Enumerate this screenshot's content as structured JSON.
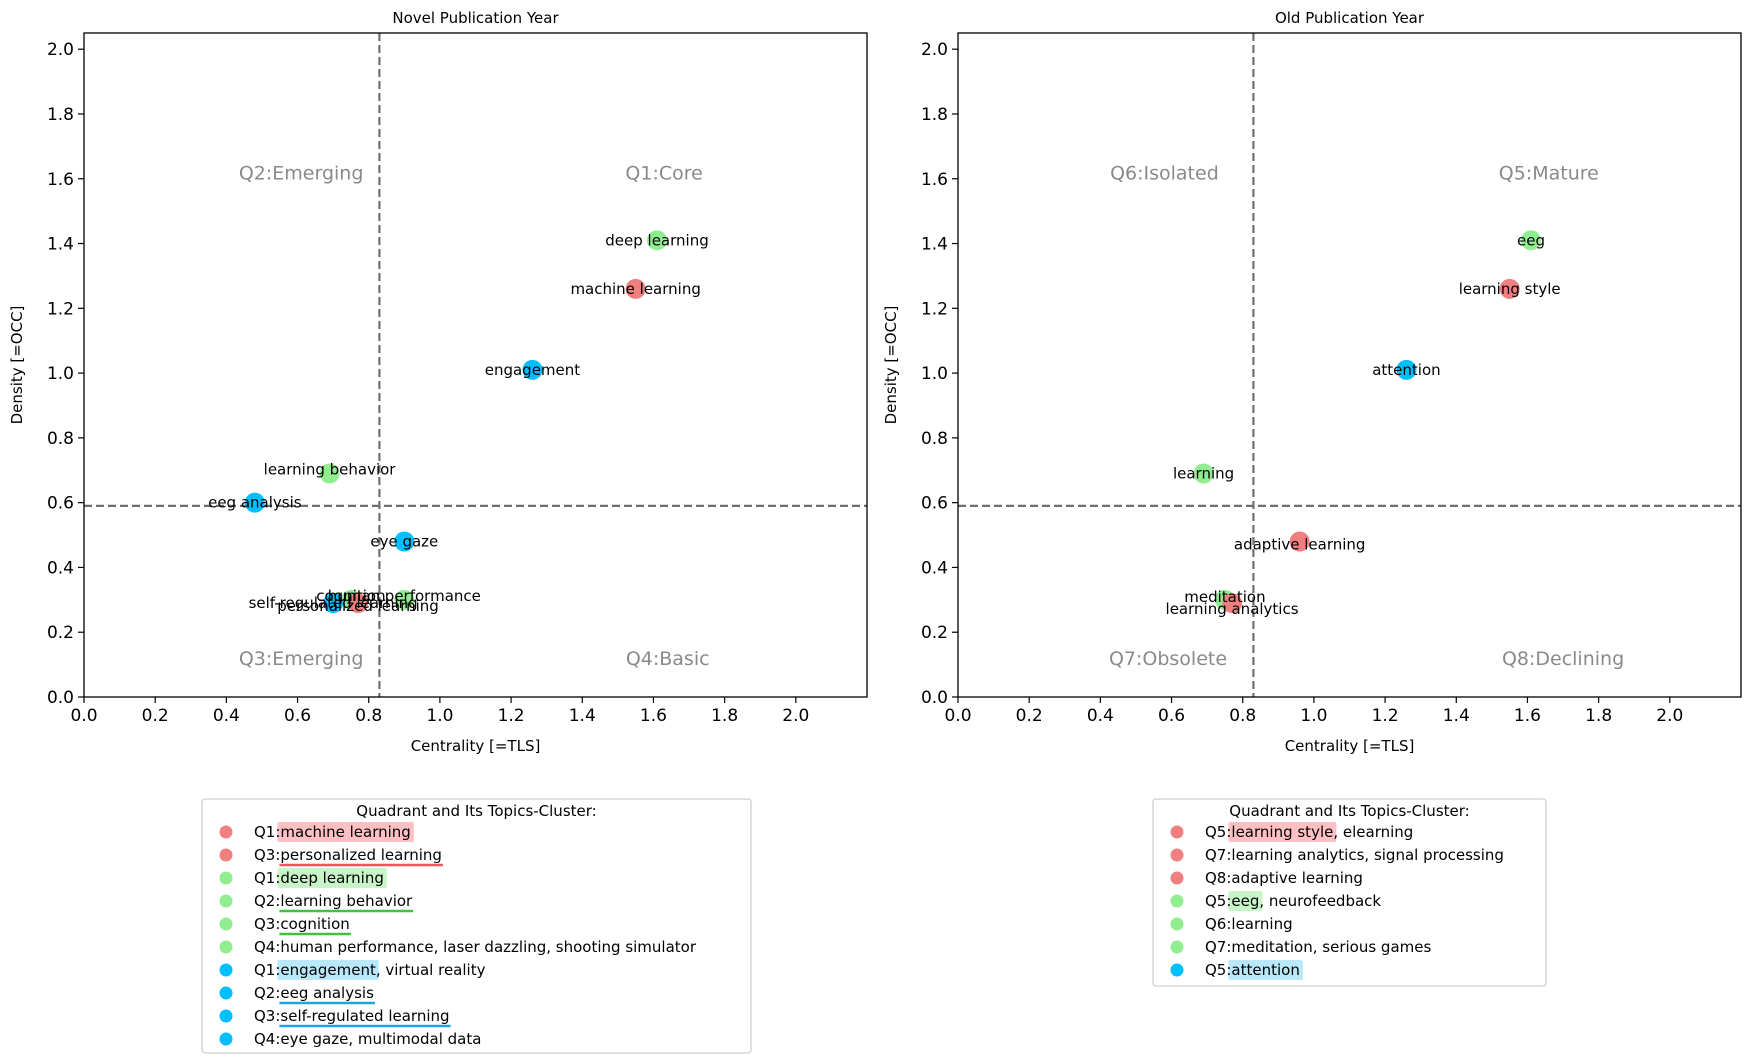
{
  "colors": {
    "red": "#f08080",
    "green": "#90ee90",
    "blue": "#00bfff",
    "red_underline": "#e8585a",
    "green_underline": "#3cc43c",
    "blue_underline": "#1aa6e0",
    "red_highlight": "#ffc0c4",
    "green_highlight": "#c8f5c8",
    "blue_highlight": "#b8e8fa"
  },
  "chart_data": [
    {
      "type": "scatter",
      "title": "Novel Publication Year",
      "xlabel": "Centrality [=TLS]",
      "ylabel": "Density [=OCC]",
      "xlim": [
        0,
        2.2
      ],
      "ylim": [
        0,
        2.05
      ],
      "xticks": [
        "0.0",
        "0.2",
        "0.4",
        "0.6",
        "0.8",
        "1.0",
        "1.2",
        "1.4",
        "1.6",
        "1.8",
        "2.0"
      ],
      "yticks": [
        "0.0",
        "0.2",
        "0.4",
        "0.6",
        "0.8",
        "1.0",
        "1.2",
        "1.4",
        "1.6",
        "1.8",
        "2.0"
      ],
      "divider_x": 0.83,
      "divider_y": 0.59,
      "quadrant_labels": [
        {
          "text": "Q1:Core",
          "x": 1.63,
          "y": 1.62
        },
        {
          "text": "Q2:Emerging",
          "x": 0.61,
          "y": 1.62
        },
        {
          "text": "Q3:Emerging",
          "x": 0.61,
          "y": 0.12
        },
        {
          "text": "Q4:Basic",
          "x": 1.64,
          "y": 0.12
        }
      ],
      "points": [
        {
          "label": "deep learning",
          "x": 1.61,
          "y": 1.41,
          "color": "green"
        },
        {
          "label": "machine learning",
          "x": 1.55,
          "y": 1.26,
          "color": "red"
        },
        {
          "label": "engagement",
          "x": 1.26,
          "y": 1.01,
          "color": "blue"
        },
        {
          "label": "learning behavior",
          "x": 0.69,
          "y": 0.69,
          "color": "green"
        },
        {
          "label": "eeg analysis",
          "x": 0.48,
          "y": 0.6,
          "color": "blue"
        },
        {
          "label": "eye gaze",
          "x": 0.9,
          "y": 0.48,
          "color": "blue"
        },
        {
          "label": "cognition",
          "x": 0.75,
          "y": 0.3,
          "color": "green"
        },
        {
          "label": "human performance",
          "x": 0.9,
          "y": 0.3,
          "color": "green"
        },
        {
          "label": "personalized learning",
          "x": 0.77,
          "y": 0.29,
          "color": "red"
        },
        {
          "label": "self-regulated learning",
          "x": 0.7,
          "y": 0.29,
          "color": "blue"
        }
      ]
    },
    {
      "type": "scatter",
      "title": "Old Publication Year",
      "xlabel": "Centrality [=TLS]",
      "ylabel": "Density [=OCC]",
      "xlim": [
        0,
        2.2
      ],
      "ylim": [
        0,
        2.05
      ],
      "xticks": [
        "0.0",
        "0.2",
        "0.4",
        "0.6",
        "0.8",
        "1.0",
        "1.2",
        "1.4",
        "1.6",
        "1.8",
        "2.0"
      ],
      "yticks": [
        "0.0",
        "0.2",
        "0.4",
        "0.6",
        "0.8",
        "1.0",
        "1.2",
        "1.4",
        "1.6",
        "1.8",
        "2.0"
      ],
      "divider_x": 0.83,
      "divider_y": 0.59,
      "quadrant_labels": [
        {
          "text": "Q6:Isolated",
          "x": 0.58,
          "y": 1.62
        },
        {
          "text": "Q5:Mature",
          "x": 1.66,
          "y": 1.62
        },
        {
          "text": "Q7:Obsolete",
          "x": 0.59,
          "y": 0.12
        },
        {
          "text": "Q8:Declining",
          "x": 1.7,
          "y": 0.12
        }
      ],
      "points": [
        {
          "label": "eeg",
          "x": 1.61,
          "y": 1.41,
          "color": "green"
        },
        {
          "label": "learning style",
          "x": 1.55,
          "y": 1.26,
          "color": "red"
        },
        {
          "label": "attention",
          "x": 1.26,
          "y": 1.01,
          "color": "blue"
        },
        {
          "label": "learning",
          "x": 0.69,
          "y": 0.69,
          "color": "green"
        },
        {
          "label": "adaptive learning",
          "x": 0.96,
          "y": 0.48,
          "color": "red"
        },
        {
          "label": "meditation",
          "x": 0.75,
          "y": 0.3,
          "color": "green"
        },
        {
          "label": "learning analytics",
          "x": 0.77,
          "y": 0.29,
          "color": "red"
        }
      ]
    }
  ],
  "legends": [
    {
      "title": "Quadrant and Its Topics-Cluster:",
      "entries": [
        {
          "color": "red",
          "prefix": "Q1: ",
          "text": "machine learning",
          "style": "highlight"
        },
        {
          "color": "red",
          "prefix": "Q3: ",
          "text": "personalized learning",
          "style": "underline"
        },
        {
          "color": "green",
          "prefix": "Q1: ",
          "text": "deep learning",
          "style": "highlight"
        },
        {
          "color": "green",
          "prefix": "Q2: ",
          "text": "learning behavior",
          "style": "underline"
        },
        {
          "color": "green",
          "prefix": "Q3: ",
          "text": "cognition",
          "style": "underline"
        },
        {
          "color": "green",
          "prefix": "Q4: ",
          "text": "human performance, laser dazzling, shooting simulator",
          "style": "none"
        },
        {
          "color": "blue",
          "prefix": "Q1: ",
          "text": "engagement",
          "suffix": ", virtual reality",
          "style": "highlight"
        },
        {
          "color": "blue",
          "prefix": "Q2: ",
          "text": "eeg analysis",
          "style": "underline"
        },
        {
          "color": "blue",
          "prefix": "Q3: ",
          "text": "self-regulated learning",
          "style": "underline"
        },
        {
          "color": "blue",
          "prefix": "Q4: ",
          "text": "eye gaze, multimodal data",
          "style": "none"
        }
      ]
    },
    {
      "title": "Quadrant and Its Topics-Cluster:",
      "entries": [
        {
          "color": "red",
          "prefix": "Q5: ",
          "text": "learning style",
          "suffix": ", elearning",
          "style": "highlight"
        },
        {
          "color": "red",
          "prefix": "Q7: ",
          "text": "learning analytics, signal processing",
          "style": "none"
        },
        {
          "color": "red",
          "prefix": "Q8: ",
          "text": "adaptive learning",
          "style": "none"
        },
        {
          "color": "green",
          "prefix": "Q5: ",
          "text": "eeg",
          "suffix": ", neurofeedback",
          "style": "highlight"
        },
        {
          "color": "green",
          "prefix": "Q6: ",
          "text": "learning",
          "style": "none"
        },
        {
          "color": "green",
          "prefix": "Q7: ",
          "text": "meditation, serious games",
          "style": "none"
        },
        {
          "color": "blue",
          "prefix": "Q5: ",
          "text": "attention",
          "style": "highlight"
        }
      ]
    }
  ]
}
